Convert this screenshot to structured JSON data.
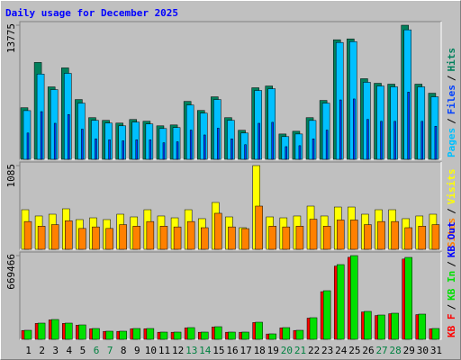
{
  "title": "Daily usage for December 2025",
  "legend_separator": "/",
  "categories": [
    "1",
    "2",
    "3",
    "4",
    "5",
    "6",
    "7",
    "8",
    "9",
    "10",
    "11",
    "12",
    "13",
    "14",
    "15",
    "16",
    "17",
    "18",
    "19",
    "20",
    "21",
    "22",
    "23",
    "24",
    "25",
    "26",
    "27",
    "28",
    "29",
    "30",
    "31"
  ],
  "category_colors": [
    "#000000",
    "#000000",
    "#000000",
    "#000000",
    "#000000",
    "#008040",
    "#008040",
    "#000000",
    "#000000",
    "#000000",
    "#000000",
    "#000000",
    "#008040",
    "#008040",
    "#000000",
    "#000000",
    "#000000",
    "#000000",
    "#000000",
    "#008040",
    "#008040",
    "#000000",
    "#000000",
    "#000000",
    "#000000",
    "#000000",
    "#008040",
    "#008040",
    "#000000",
    "#000000",
    "#000000"
  ],
  "title_color": "#0000ff",
  "chart_data": [
    {
      "type": "bar",
      "ylim": [
        0,
        13775
      ],
      "yticks": [
        13775
      ],
      "series": [
        {
          "name": "Pages",
          "color": "#00c0ff",
          "values": [
            5000,
            8760,
            7160,
            8830,
            5770,
            4000,
            3720,
            3440,
            3820,
            3630,
            3160,
            3260,
            5580,
            4740,
            6140,
            4000,
            2700,
            7070,
            7250,
            2330,
            2600,
            3990,
            5770,
            12000,
            12090,
            7910,
            7530,
            7440,
            13300,
            7440,
            6420
          ]
        },
        {
          "name": "Files",
          "color": "#0040ff",
          "values": [
            2700,
            4900,
            3700,
            4600,
            3100,
            2100,
            2000,
            1900,
            2000,
            2000,
            1700,
            1800,
            3000,
            2500,
            3200,
            2100,
            1500,
            3700,
            3800,
            1300,
            1400,
            2100,
            3000,
            6100,
            6200,
            4100,
            3900,
            3900,
            6900,
            3900,
            3400
          ]
        },
        {
          "name": "Hits",
          "color": "#00805c",
          "values": [
            5300,
            9950,
            7440,
            9390,
            6140,
            4280,
            4000,
            3720,
            4090,
            3910,
            3440,
            3530,
            5950,
            5020,
            6420,
            4280,
            2980,
            7350,
            7530,
            2600,
            2880,
            4280,
            6050,
            12280,
            12370,
            8280,
            7810,
            7720,
            13775,
            7720,
            6790
          ]
        }
      ]
    },
    {
      "type": "bar",
      "ylim": [
        0,
        1085
      ],
      "yticks": [
        1085
      ],
      "series": [
        {
          "name": "Sites",
          "color": "#ff8000",
          "values": [
            360,
            300,
            320,
            370,
            270,
            290,
            270,
            320,
            300,
            360,
            300,
            290,
            360,
            280,
            467,
            290,
            268,
            560,
            300,
            290,
            300,
            390,
            300,
            380,
            380,
            320,
            360,
            360,
            280,
            300,
            320
          ]
        },
        {
          "name": "Visits",
          "color": "#ffff00",
          "values": [
            513,
            432,
            455,
            525,
            385,
            408,
            385,
            455,
            420,
            513,
            432,
            408,
            513,
            397,
            607,
            420,
            280,
            1085,
            420,
            408,
            432,
            560,
            432,
            548,
            548,
            455,
            513,
            513,
            397,
            432,
            455
          ]
        }
      ]
    },
    {
      "type": "bar",
      "ylim": [
        0,
        669466
      ],
      "yticks": [
        669466
      ],
      "series": [
        {
          "name": "KB F",
          "color": "#ff0000",
          "values": [
            70500,
            127000,
            155200,
            127000,
            112900,
            84700,
            63500,
            63500,
            84700,
            84700,
            56400,
            56400,
            91700,
            56400,
            98800,
            56400,
            56400,
            134100,
            42300,
            91700,
            70600,
            169300,
            380900,
            585600,
            656100,
            218700,
            190500,
            204600,
            642000,
            197600,
            84700
          ]
        },
        {
          "name": "KB In",
          "color": "#00e000",
          "values": [
            72000,
            129600,
            158400,
            129600,
            115200,
            86400,
            64800,
            64800,
            86400,
            86400,
            57600,
            57600,
            93600,
            57600,
            100800,
            57600,
            57600,
            136800,
            43200,
            93600,
            72000,
            172800,
            388700,
            597500,
            669466,
            223200,
            194400,
            208800,
            655100,
            201600,
            86400
          ]
        },
        {
          "name": "KB Out",
          "color": "#0000ff",
          "values": [
            0,
            0,
            0,
            0,
            0,
            0,
            0,
            0,
            0,
            0,
            0,
            0,
            0,
            0,
            0,
            0,
            0,
            0,
            0,
            0,
            0,
            0,
            0,
            0,
            0,
            0,
            0,
            0,
            0,
            0,
            0
          ]
        }
      ]
    }
  ]
}
